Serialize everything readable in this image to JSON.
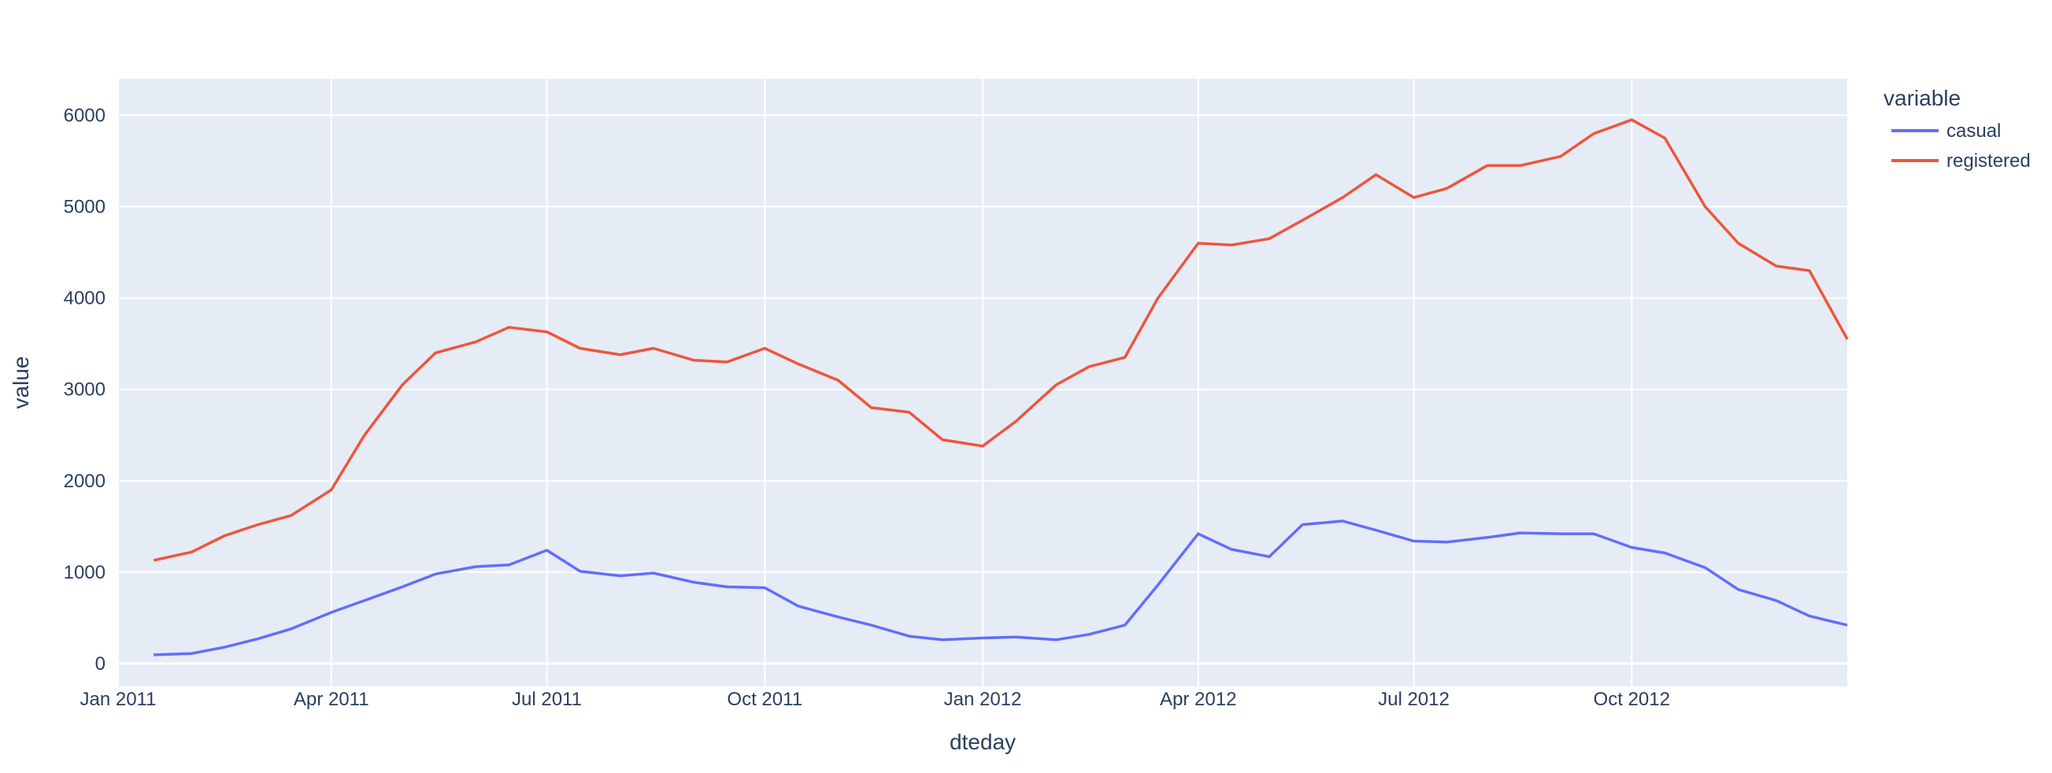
{
  "chart_data": {
    "type": "line",
    "xlabel": "dteday",
    "ylabel": "value",
    "xlim": [
      "2011-01-01",
      "2012-12-31"
    ],
    "ylim": [
      -250,
      6400
    ],
    "x_ticks": [
      {
        "date": "2011-01-01",
        "label": "Jan 2011"
      },
      {
        "date": "2011-04-01",
        "label": "Apr 2011"
      },
      {
        "date": "2011-07-01",
        "label": "Jul 2011"
      },
      {
        "date": "2011-10-01",
        "label": "Oct 2011"
      },
      {
        "date": "2012-01-01",
        "label": "Jan 2012"
      },
      {
        "date": "2012-04-01",
        "label": "Apr 2012"
      },
      {
        "date": "2012-07-01",
        "label": "Jul 2012"
      },
      {
        "date": "2012-10-01",
        "label": "Oct 2012"
      }
    ],
    "y_ticks": [
      0,
      1000,
      2000,
      3000,
      4000,
      5000,
      6000
    ],
    "grid": true,
    "legend": {
      "title": "variable",
      "placement": "top-right"
    },
    "series": [
      {
        "name": "casual",
        "color": "#636efa",
        "points": [
          [
            "2011-01-16",
            95
          ],
          [
            "2011-02-01",
            110
          ],
          [
            "2011-02-15",
            180
          ],
          [
            "2011-03-01",
            270
          ],
          [
            "2011-03-15",
            380
          ],
          [
            "2011-04-01",
            560
          ],
          [
            "2011-04-15",
            690
          ],
          [
            "2011-05-01",
            840
          ],
          [
            "2011-05-15",
            980
          ],
          [
            "2011-06-01",
            1060
          ],
          [
            "2011-06-15",
            1080
          ],
          [
            "2011-07-01",
            1240
          ],
          [
            "2011-07-15",
            1010
          ],
          [
            "2011-08-01",
            960
          ],
          [
            "2011-08-15",
            990
          ],
          [
            "2011-09-01",
            890
          ],
          [
            "2011-09-15",
            840
          ],
          [
            "2011-10-01",
            830
          ],
          [
            "2011-10-15",
            630
          ],
          [
            "2011-11-01",
            510
          ],
          [
            "2011-11-15",
            420
          ],
          [
            "2011-12-01",
            300
          ],
          [
            "2011-12-15",
            260
          ],
          [
            "2012-01-01",
            280
          ],
          [
            "2012-01-15",
            290
          ],
          [
            "2012-02-01",
            260
          ],
          [
            "2012-02-15",
            320
          ],
          [
            "2012-03-01",
            420
          ],
          [
            "2012-03-15",
            860
          ],
          [
            "2012-04-01",
            1420
          ],
          [
            "2012-04-15",
            1250
          ],
          [
            "2012-05-01",
            1170
          ],
          [
            "2012-05-15",
            1520
          ],
          [
            "2012-06-01",
            1560
          ],
          [
            "2012-06-15",
            1460
          ],
          [
            "2012-07-01",
            1340
          ],
          [
            "2012-07-15",
            1330
          ],
          [
            "2012-08-01",
            1380
          ],
          [
            "2012-08-15",
            1430
          ],
          [
            "2012-09-01",
            1420
          ],
          [
            "2012-09-15",
            1420
          ],
          [
            "2012-10-01",
            1270
          ],
          [
            "2012-10-15",
            1210
          ],
          [
            "2012-11-01",
            1050
          ],
          [
            "2012-11-15",
            810
          ],
          [
            "2012-12-01",
            690
          ],
          [
            "2012-12-15",
            520
          ],
          [
            "2012-12-31",
            420
          ]
        ]
      },
      {
        "name": "registered",
        "color": "#EF553B",
        "points": [
          [
            "2011-01-16",
            1130
          ],
          [
            "2011-02-01",
            1220
          ],
          [
            "2011-02-15",
            1400
          ],
          [
            "2011-03-01",
            1520
          ],
          [
            "2011-03-15",
            1620
          ],
          [
            "2011-04-01",
            1900
          ],
          [
            "2011-04-15",
            2500
          ],
          [
            "2011-05-01",
            3050
          ],
          [
            "2011-05-15",
            3400
          ],
          [
            "2011-06-01",
            3520
          ],
          [
            "2011-06-15",
            3680
          ],
          [
            "2011-07-01",
            3630
          ],
          [
            "2011-07-15",
            3450
          ],
          [
            "2011-08-01",
            3380
          ],
          [
            "2011-08-15",
            3450
          ],
          [
            "2011-09-01",
            3320
          ],
          [
            "2011-09-15",
            3300
          ],
          [
            "2011-10-01",
            3450
          ],
          [
            "2011-10-15",
            3280
          ],
          [
            "2011-11-01",
            3100
          ],
          [
            "2011-11-15",
            2800
          ],
          [
            "2011-12-01",
            2750
          ],
          [
            "2011-12-15",
            2450
          ],
          [
            "2012-01-01",
            2380
          ],
          [
            "2012-01-15",
            2650
          ],
          [
            "2012-02-01",
            3050
          ],
          [
            "2012-02-15",
            3250
          ],
          [
            "2012-03-01",
            3350
          ],
          [
            "2012-03-15",
            4000
          ],
          [
            "2012-04-01",
            4600
          ],
          [
            "2012-04-15",
            4580
          ],
          [
            "2012-05-01",
            4650
          ],
          [
            "2012-05-15",
            4850
          ],
          [
            "2012-06-01",
            5100
          ],
          [
            "2012-06-15",
            5350
          ],
          [
            "2012-07-01",
            5100
          ],
          [
            "2012-07-15",
            5200
          ],
          [
            "2012-08-01",
            5450
          ],
          [
            "2012-08-15",
            5450
          ],
          [
            "2012-09-01",
            5550
          ],
          [
            "2012-09-15",
            5800
          ],
          [
            "2012-10-01",
            5950
          ],
          [
            "2012-10-15",
            5750
          ],
          [
            "2012-11-01",
            5000
          ],
          [
            "2012-11-15",
            4600
          ],
          [
            "2012-12-01",
            4350
          ],
          [
            "2012-12-15",
            4300
          ],
          [
            "2012-12-31",
            3550
          ]
        ]
      }
    ]
  }
}
